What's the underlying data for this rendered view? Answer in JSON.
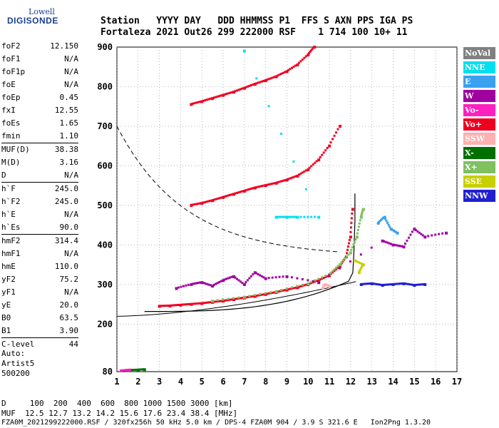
{
  "logo": {
    "top": "Lowell",
    "bottom": "DIGISONDE"
  },
  "header": {
    "line1": "Station   YYYY DAY   DDD HHMMSS P1  FFS S AXN PPS IGA PS",
    "line2": "Fortaleza 2021 Out26 299 222000 RSF    1 714 100 10+ 11"
  },
  "params": [
    [
      {
        "label": "foF2",
        "value": "12.150"
      },
      {
        "label": "foF1",
        "value": "N/A"
      },
      {
        "label": "foF1p",
        "value": "N/A"
      },
      {
        "label": "foE",
        "value": "N/A"
      },
      {
        "label": "foEp",
        "value": "0.45"
      },
      {
        "label": "fxI",
        "value": "12.55"
      },
      {
        "label": "foEs",
        "value": "1.65"
      },
      {
        "label": "fmin",
        "value": "1.10"
      }
    ],
    [
      {
        "label": "MUF(D)",
        "value": "38.38"
      },
      {
        "label": "M(D)",
        "value": "3.16"
      },
      {
        "label": "D",
        "value": "N/A"
      }
    ],
    [
      {
        "label": "h`F",
        "value": "245.0"
      },
      {
        "label": "h`F2",
        "value": "245.0"
      },
      {
        "label": "h`E",
        "value": "N/A"
      },
      {
        "label": "h`Es",
        "value": "90.0"
      }
    ],
    [
      {
        "label": "hmF2",
        "value": "314.4"
      },
      {
        "label": "hmF1",
        "value": "N/A"
      },
      {
        "label": "hmE",
        "value": "110.0"
      },
      {
        "label": "yF2",
        "value": "75.2"
      },
      {
        "label": "yF1",
        "value": "N/A"
      },
      {
        "label": "yE",
        "value": "20.0"
      },
      {
        "label": "B0",
        "value": "63.5"
      },
      {
        "label": "B1",
        "value": "3.90"
      }
    ],
    [
      {
        "label": "C-level",
        "value": "44"
      }
    ]
  ],
  "auto": {
    "line1": "Auto:",
    "line2": "Artist5",
    "line3": "500200"
  },
  "footer": {
    "line1": "D     100  200  400  600  800 1000 1500 3000 [km]",
    "line2": "MUF  12.5 12.7 13.2 14.2 15.6 17.6 23.4 38.4 [MHz]",
    "line3": "FZA0M_2021299222000.RSF / 320fx256h 50 kHz 5.0 km / DPS-4 FZA0M 904 / 3.9 S 321.6 E   Ion2Png 1.3.20"
  },
  "legend": [
    {
      "label": "NoVal",
      "color": "#808080"
    },
    {
      "label": "NNE",
      "color": "#00e0f0"
    },
    {
      "label": "E",
      "color": "#3aa0f0"
    },
    {
      "label": "W",
      "color": "#a000a0"
    },
    {
      "label": "Vo-",
      "color": "#ff20c0"
    },
    {
      "label": "Vo+",
      "color": "#f00020"
    },
    {
      "label": "SSW",
      "color": "#ffb0b0"
    },
    {
      "label": "X-",
      "color": "#007000"
    },
    {
      "label": "X+",
      "color": "#80c060"
    },
    {
      "label": "SSE",
      "color": "#c8d000"
    },
    {
      "label": "NNW",
      "color": "#2020d0"
    }
  ],
  "chart_data": {
    "type": "scatter",
    "xlabel": "",
    "ylabel": "",
    "xlim": [
      1,
      17
    ],
    "ylim": [
      80,
      900
    ],
    "xticks": [
      1,
      2,
      3,
      4,
      5,
      6,
      7,
      8,
      9,
      10,
      11,
      12,
      13,
      14,
      15,
      16,
      17
    ],
    "yticks": [
      80,
      200,
      300,
      400,
      500,
      600,
      700,
      800,
      900
    ],
    "grid": true,
    "foF2_mhz": 12.15,
    "hmF2_km": 314.4,
    "series": [
      {
        "name": "Vo+",
        "color": "#f00020",
        "points": [
          [
            3.0,
            245
          ],
          [
            3.5,
            246
          ],
          [
            4.0,
            248
          ],
          [
            4.5,
            250
          ],
          [
            5.0,
            252
          ],
          [
            5.5,
            255
          ],
          [
            6.0,
            258
          ],
          [
            6.5,
            262
          ],
          [
            7.0,
            266
          ],
          [
            7.5,
            270
          ],
          [
            8.0,
            275
          ],
          [
            8.5,
            280
          ],
          [
            9.0,
            286
          ],
          [
            9.5,
            292
          ],
          [
            10.0,
            300
          ],
          [
            10.5,
            310
          ],
          [
            11.0,
            322
          ],
          [
            11.5,
            345
          ],
          [
            11.8,
            370
          ],
          [
            12.0,
            420
          ],
          [
            12.1,
            490
          ]
        ]
      },
      {
        "name": "Vo+",
        "color": "#f00020",
        "points": [
          [
            4.5,
            500
          ],
          [
            5.0,
            505
          ],
          [
            5.5,
            512
          ],
          [
            6.0,
            520
          ],
          [
            6.5,
            528
          ],
          [
            7.0,
            536
          ],
          [
            7.5,
            544
          ],
          [
            8.0,
            550
          ],
          [
            8.5,
            556
          ],
          [
            9.0,
            564
          ],
          [
            9.5,
            574
          ],
          [
            10.0,
            590
          ],
          [
            10.5,
            615
          ],
          [
            11.0,
            650
          ],
          [
            11.5,
            700
          ]
        ]
      },
      {
        "name": "Vo+",
        "color": "#f00020",
        "points": [
          [
            4.5,
            755
          ],
          [
            5.0,
            762
          ],
          [
            5.5,
            770
          ],
          [
            6.0,
            778
          ],
          [
            6.5,
            786
          ],
          [
            7.0,
            796
          ],
          [
            7.5,
            806
          ],
          [
            8.0,
            815
          ],
          [
            8.5,
            825
          ],
          [
            9.0,
            838
          ],
          [
            9.5,
            855
          ],
          [
            10.0,
            880
          ],
          [
            10.3,
            900
          ]
        ]
      },
      {
        "name": "X+",
        "color": "#80c060",
        "points": [
          [
            5.5,
            258
          ],
          [
            7.0,
            268
          ],
          [
            8.5,
            282
          ],
          [
            10.0,
            302
          ],
          [
            11.0,
            325
          ],
          [
            11.5,
            350
          ],
          [
            12.0,
            380
          ],
          [
            12.3,
            420
          ],
          [
            12.5,
            470
          ],
          [
            12.6,
            490
          ]
        ]
      },
      {
        "name": "W",
        "color": "#a000a0",
        "points": [
          [
            3.8,
            290
          ],
          [
            4.5,
            300
          ],
          [
            5.0,
            305
          ],
          [
            5.5,
            296
          ],
          [
            6.0,
            310
          ],
          [
            6.5,
            320
          ],
          [
            7.0,
            300
          ],
          [
            7.5,
            330
          ],
          [
            8.0,
            315
          ],
          [
            9.0,
            320
          ],
          [
            10.5,
            305
          ],
          [
            13.5,
            410
          ],
          [
            14.0,
            400
          ],
          [
            14.5,
            395
          ],
          [
            15.0,
            440
          ],
          [
            15.5,
            420
          ],
          [
            16.5,
            430
          ]
        ]
      },
      {
        "name": "E",
        "color": "#3aa0f0",
        "points": [
          [
            13.3,
            455
          ],
          [
            13.6,
            470
          ],
          [
            13.9,
            440
          ],
          [
            14.2,
            430
          ]
        ]
      },
      {
        "name": "NNW",
        "color": "#2020d0",
        "points": [
          [
            12.5,
            300
          ],
          [
            13.0,
            302
          ],
          [
            13.5,
            298
          ],
          [
            14.0,
            300
          ],
          [
            14.5,
            302
          ],
          [
            15.0,
            298
          ],
          [
            15.5,
            300
          ]
        ]
      },
      {
        "name": "X-",
        "color": "#007000",
        "points": [
          [
            1.5,
            83
          ],
          [
            2.0,
            84
          ],
          [
            2.3,
            85
          ]
        ]
      },
      {
        "name": "Vo-",
        "color": "#ff20c0",
        "points": [
          [
            1.2,
            82
          ],
          [
            1.6,
            84
          ]
        ]
      },
      {
        "name": "SSE",
        "color": "#c8d000",
        "points": [
          [
            12.4,
            330
          ],
          [
            12.6,
            350
          ],
          [
            12.2,
            360
          ]
        ]
      },
      {
        "name": "NNE",
        "color": "#00e0f0",
        "points": [
          [
            8.5,
            470
          ],
          [
            9.0,
            470
          ],
          [
            9.5,
            470
          ],
          [
            10.5,
            470
          ],
          [
            7.0,
            890
          ]
        ]
      },
      {
        "name": "SSW",
        "color": "#ffb0b0",
        "points": [
          [
            10.7,
            290
          ],
          [
            10.8,
            300
          ],
          [
            11.0,
            295
          ]
        ]
      }
    ]
  }
}
